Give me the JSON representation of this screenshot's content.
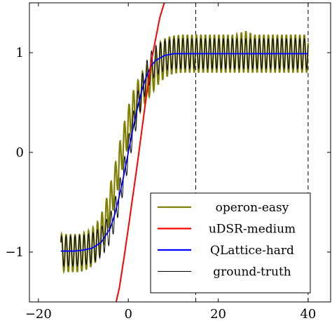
{
  "chart_data": {
    "type": "line",
    "title": "",
    "xlabel": "",
    "ylabel": "",
    "xlim": [
      -22,
      45
    ],
    "ylim": [
      -1.5,
      1.5
    ],
    "x_ticks": [
      -20,
      0,
      20,
      40
    ],
    "y_ticks": [
      -1,
      0,
      1
    ],
    "x_tick_labels": [
      "−20",
      "0",
      "20",
      "40"
    ],
    "y_tick_labels": [
      "−1",
      "0",
      "1"
    ],
    "grid": false,
    "legend_position": "bottom-right",
    "vertical_dashed_lines": [
      15,
      40
    ],
    "series": [
      {
        "name": "operon-easy",
        "color": "#808000",
        "x": [
          -15,
          -14,
          -13,
          -12,
          -11,
          -10,
          -9,
          -8,
          -7,
          -6,
          -5,
          -4,
          -3,
          -2,
          -1,
          0,
          1,
          2,
          3,
          4,
          5,
          6,
          7,
          8,
          9,
          10,
          12,
          14,
          16,
          18,
          20,
          22,
          24,
          26,
          28,
          30,
          32,
          34,
          36,
          38,
          40
        ],
        "y_envelope_high": [
          -0.82,
          -0.82,
          -0.82,
          -0.82,
          -0.82,
          -0.81,
          -0.79,
          -0.76,
          -0.71,
          -0.62,
          -0.49,
          -0.32,
          -0.13,
          0.08,
          0.28,
          0.46,
          0.6,
          0.71,
          0.8,
          0.86,
          0.9,
          1.02,
          1.1,
          1.14,
          1.16,
          1.17,
          1.18,
          1.18,
          1.18,
          1.18,
          1.18,
          1.18,
          1.18,
          1.22,
          1.18,
          1.18,
          1.18,
          1.18,
          1.18,
          1.18,
          1.18
        ],
        "y_envelope_low": [
          -1.18,
          -1.2,
          -1.2,
          -1.2,
          -1.2,
          -1.19,
          -1.17,
          -1.14,
          -1.09,
          -1.0,
          -0.87,
          -0.7,
          -0.51,
          -0.3,
          -0.1,
          0.08,
          0.22,
          0.34,
          0.44,
          0.52,
          0.58,
          0.64,
          0.7,
          0.74,
          0.77,
          0.79,
          0.8,
          0.8,
          0.8,
          0.8,
          0.8,
          0.8,
          0.8,
          0.8,
          0.8,
          0.8,
          0.8,
          0.8,
          0.8,
          0.8,
          0.8
        ],
        "oscillation_period": 1.0
      },
      {
        "name": "uDSR-medium",
        "color": "#ff0000",
        "x": [
          -2.7,
          -2,
          -1,
          0,
          1,
          2,
          3,
          4,
          5,
          6,
          7,
          8
        ],
        "y": [
          -1.5,
          -1.36,
          -1.07,
          -0.76,
          -0.44,
          -0.12,
          0.22,
          0.56,
          0.88,
          1.12,
          1.35,
          1.5
        ]
      },
      {
        "name": "QLattice-hard",
        "color": "#0000ff",
        "x": [
          -15,
          -12,
          -10,
          -8,
          -6,
          -4,
          -3,
          -2,
          -1,
          0,
          1,
          2,
          3,
          4,
          5,
          6,
          8,
          10,
          12,
          15,
          20,
          30,
          40
        ],
        "y": [
          -0.99,
          -0.99,
          -0.98,
          -0.96,
          -0.9,
          -0.76,
          -0.62,
          -0.44,
          -0.23,
          0.0,
          0.23,
          0.44,
          0.62,
          0.76,
          0.86,
          0.92,
          0.97,
          0.99,
          0.99,
          0.99,
          0.99,
          0.99,
          0.99
        ]
      },
      {
        "name": "ground-truth",
        "color": "#000000",
        "x": [
          -15,
          -12,
          -10,
          -8,
          -6,
          -4,
          -3,
          -2,
          -1,
          0,
          1,
          2,
          3,
          4,
          5,
          6,
          8,
          10,
          12,
          15,
          20,
          30,
          40
        ],
        "y_center": [
          -0.99,
          -0.99,
          -0.98,
          -0.96,
          -0.9,
          -0.76,
          -0.62,
          -0.44,
          -0.23,
          0.0,
          0.23,
          0.44,
          0.62,
          0.76,
          0.86,
          0.92,
          0.97,
          0.99,
          0.99,
          0.99,
          0.99,
          0.99,
          0.99
        ],
        "oscillation_amplitude": 0.15,
        "oscillation_period": 1.0
      }
    ]
  }
}
